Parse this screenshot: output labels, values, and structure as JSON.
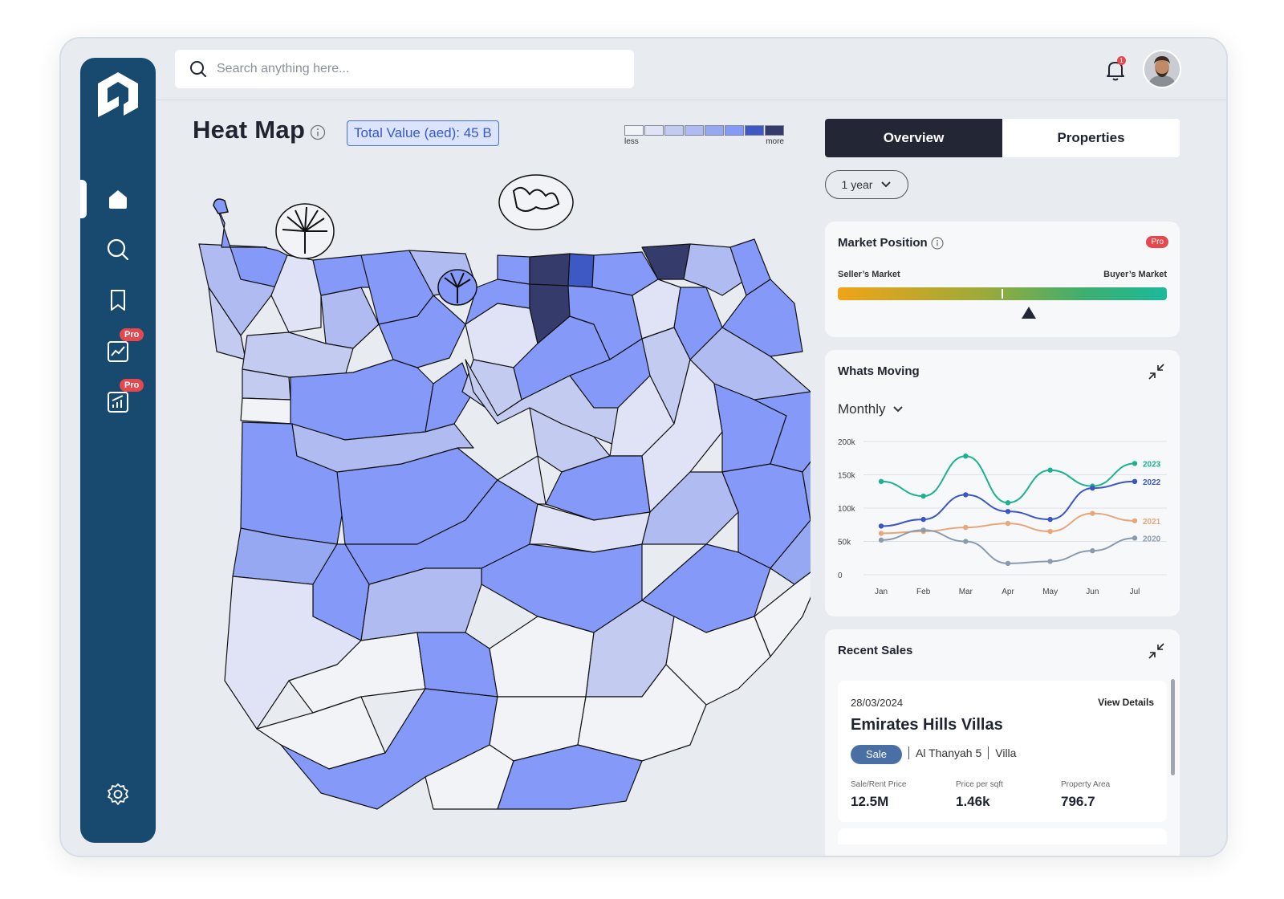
{
  "search": {
    "placeholder": "Search anything here..."
  },
  "sidebar": {
    "items": [
      {
        "icon": "home-icon"
      },
      {
        "icon": "search-icon"
      },
      {
        "icon": "bookmark-icon"
      },
      {
        "icon": "chart-icon",
        "badge": "Pro"
      },
      {
        "icon": "growth-icon",
        "badge": "Pro"
      },
      {
        "icon": "gear-icon"
      }
    ]
  },
  "header": {
    "notification_count": "1"
  },
  "heatmap": {
    "title": "Heat Map",
    "total_value": "Total Value (aed): 45 B",
    "legend_less": "less",
    "legend_more": "more",
    "legend_colors": [
      "#f2f3f6",
      "#dfe3f5",
      "#c4cbf0",
      "#b0bcf1",
      "#97a8f2",
      "#8599f8",
      "#3e58c4",
      "#353c6c"
    ]
  },
  "tabs": {
    "overview": "Overview",
    "properties": "Properties"
  },
  "period": "1 year",
  "market_position": {
    "title": "Market Position",
    "badge": "Pro",
    "left_label": "Seller’s Market",
    "right_label": "Buyer’s Market",
    "indicator": 0.58
  },
  "whats_moving": {
    "title": "Whats Moving",
    "frequency": "Monthly"
  },
  "chart_data": {
    "type": "line",
    "categories": [
      "Jan",
      "Feb",
      "Mar",
      "Apr",
      "May",
      "Jun",
      "Jul"
    ],
    "yticks": [
      "200k",
      "150k",
      "100k",
      "50k",
      "0"
    ],
    "ylim": [
      0,
      200000
    ],
    "series": [
      {
        "name": "2023",
        "color": "#1db28f",
        "values": [
          140000,
          118000,
          178000,
          108000,
          157000,
          133000,
          167000
        ]
      },
      {
        "name": "2022",
        "color": "#3a56c4",
        "values": [
          73000,
          83000,
          120000,
          95000,
          83000,
          130000,
          140000
        ]
      },
      {
        "name": "2021",
        "color": "#e8a77a",
        "values": [
          62000,
          65000,
          71000,
          77000,
          65000,
          92000,
          81000
        ]
      },
      {
        "name": "2020",
        "color": "#8a9bb0",
        "values": [
          52000,
          67000,
          50000,
          17000,
          20000,
          36000,
          55000
        ]
      }
    ]
  },
  "recent_sales": {
    "title": "Recent Sales",
    "item": {
      "date": "28/03/2024",
      "view_details": "View Details",
      "name": "Emirates Hills Villas",
      "tag": "Sale",
      "location": "Al Thanyah 5",
      "type": "Villa",
      "price_label": "Sale/Rent Price",
      "price_value": "12.5M",
      "sqft_label": "Price per sqft",
      "sqft_value": "1.46k",
      "area_label": "Property Area",
      "area_value": "796.7"
    }
  }
}
